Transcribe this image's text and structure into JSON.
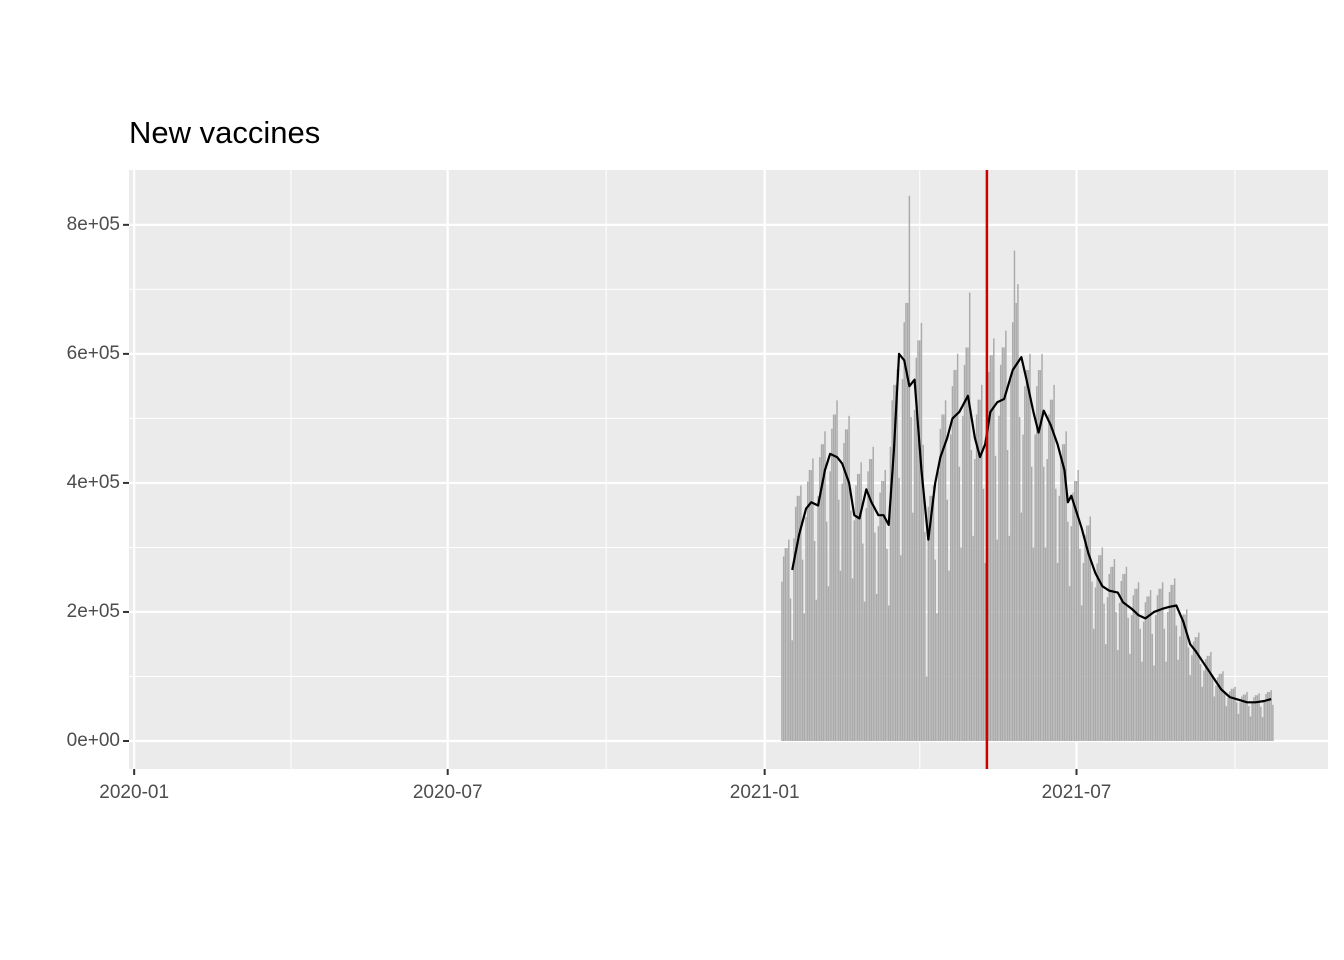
{
  "chart_data": {
    "type": "bar",
    "title": "New vaccines",
    "xlim": [
      "2019-12-29",
      "2021-11-24"
    ],
    "xticks": [
      "2020-01",
      "2020-07",
      "2021-01",
      "2021-07"
    ],
    "xminorticks": [
      "2020-04",
      "2020-10",
      "2021-04",
      "2021-10"
    ],
    "ylim": [
      -43400,
      885000
    ],
    "yticks": [
      {
        "value": 0,
        "label": "0e+00"
      },
      {
        "value": 200000,
        "label": "2e+05"
      },
      {
        "value": 400000,
        "label": "4e+05"
      },
      {
        "value": 600000,
        "label": "6e+05"
      },
      {
        "value": 800000,
        "label": "8e+05"
      }
    ],
    "yminorticks": [
      100000,
      300000,
      500000,
      700000
    ],
    "grid": true,
    "color": "#aaaaaa",
    "x": [
      "2021-01-11",
      "2021-01-12",
      "2021-01-13",
      "2021-01-14",
      "2021-01-15",
      "2021-01-16",
      "2021-01-17",
      "2021-01-18",
      "2021-01-19",
      "2021-01-20",
      "2021-01-21",
      "2021-01-22",
      "2021-01-23",
      "2021-01-24",
      "2021-01-25",
      "2021-01-26",
      "2021-01-27",
      "2021-01-28",
      "2021-01-29",
      "2021-01-30",
      "2021-01-31",
      "2021-02-01",
      "2021-02-02",
      "2021-02-03",
      "2021-02-04",
      "2021-02-05",
      "2021-02-06",
      "2021-02-07",
      "2021-02-08",
      "2021-02-09",
      "2021-02-10",
      "2021-02-11",
      "2021-02-12",
      "2021-02-13",
      "2021-02-14",
      "2021-02-15",
      "2021-02-16",
      "2021-02-17",
      "2021-02-18",
      "2021-02-19",
      "2021-02-20",
      "2021-02-21",
      "2021-02-22",
      "2021-02-23",
      "2021-02-24",
      "2021-02-25",
      "2021-02-26",
      "2021-02-27",
      "2021-02-28",
      "2021-03-01",
      "2021-03-02",
      "2021-03-03",
      "2021-03-04",
      "2021-03-05",
      "2021-03-06",
      "2021-03-07",
      "2021-03-08",
      "2021-03-09",
      "2021-03-10",
      "2021-03-11",
      "2021-03-12",
      "2021-03-13",
      "2021-03-14",
      "2021-03-15",
      "2021-03-16",
      "2021-03-17",
      "2021-03-18",
      "2021-03-19",
      "2021-03-20",
      "2021-03-21",
      "2021-03-22",
      "2021-03-23",
      "2021-03-24",
      "2021-03-25",
      "2021-03-26",
      "2021-03-27",
      "2021-03-28",
      "2021-03-29",
      "2021-03-30",
      "2021-03-31",
      "2021-04-01",
      "2021-04-02",
      "2021-04-03",
      "2021-04-04",
      "2021-04-05",
      "2021-04-06",
      "2021-04-07",
      "2021-04-08",
      "2021-04-09",
      "2021-04-10",
      "2021-04-11",
      "2021-04-12",
      "2021-04-13",
      "2021-04-14",
      "2021-04-15",
      "2021-04-16",
      "2021-04-17",
      "2021-04-18",
      "2021-04-19",
      "2021-04-20",
      "2021-04-21",
      "2021-04-22",
      "2021-04-23",
      "2021-04-24",
      "2021-04-25",
      "2021-04-26",
      "2021-04-27",
      "2021-04-28",
      "2021-04-29",
      "2021-04-30",
      "2021-05-01",
      "2021-05-02",
      "2021-05-03",
      "2021-05-04",
      "2021-05-05",
      "2021-05-06",
      "2021-05-07",
      "2021-05-08",
      "2021-05-09",
      "2021-05-10",
      "2021-05-11",
      "2021-05-12",
      "2021-05-13",
      "2021-05-14",
      "2021-05-15",
      "2021-05-16",
      "2021-05-17",
      "2021-05-18",
      "2021-05-19",
      "2021-05-20",
      "2021-05-21",
      "2021-05-22",
      "2021-05-23",
      "2021-05-24",
      "2021-05-25",
      "2021-05-26",
      "2021-05-27",
      "2021-05-28",
      "2021-05-29",
      "2021-05-30",
      "2021-05-31",
      "2021-06-01",
      "2021-06-02",
      "2021-06-03",
      "2021-06-04",
      "2021-06-05",
      "2021-06-06",
      "2021-06-07",
      "2021-06-08",
      "2021-06-09",
      "2021-06-10",
      "2021-06-11",
      "2021-06-12",
      "2021-06-13",
      "2021-06-14",
      "2021-06-15",
      "2021-06-16",
      "2021-06-17",
      "2021-06-18",
      "2021-06-19",
      "2021-06-20",
      "2021-06-21",
      "2021-06-22",
      "2021-06-23",
      "2021-06-24",
      "2021-06-25",
      "2021-06-26",
      "2021-06-27",
      "2021-06-28",
      "2021-06-29",
      "2021-06-30",
      "2021-07-01",
      "2021-07-02",
      "2021-07-03",
      "2021-07-04",
      "2021-07-05",
      "2021-07-06",
      "2021-07-07",
      "2021-07-08",
      "2021-07-09",
      "2021-07-10",
      "2021-07-11",
      "2021-07-12",
      "2021-07-13",
      "2021-07-14",
      "2021-07-15",
      "2021-07-16",
      "2021-07-17",
      "2021-07-18",
      "2021-07-19",
      "2021-07-20",
      "2021-07-21",
      "2021-07-22",
      "2021-07-23",
      "2021-07-24",
      "2021-07-25",
      "2021-07-26",
      "2021-07-27",
      "2021-07-28",
      "2021-07-29",
      "2021-07-30",
      "2021-07-31",
      "2021-08-01",
      "2021-08-02",
      "2021-08-03",
      "2021-08-04",
      "2021-08-05",
      "2021-08-06",
      "2021-08-07",
      "2021-08-08",
      "2021-08-09",
      "2021-08-10",
      "2021-08-11",
      "2021-08-12",
      "2021-08-13",
      "2021-08-14",
      "2021-08-15",
      "2021-08-16",
      "2021-08-17",
      "2021-08-18",
      "2021-08-19",
      "2021-08-20",
      "2021-08-21",
      "2021-08-22",
      "2021-08-23",
      "2021-08-24",
      "2021-08-25",
      "2021-08-26",
      "2021-08-27",
      "2021-08-28",
      "2021-08-29",
      "2021-08-30",
      "2021-08-31",
      "2021-09-01",
      "2021-09-02",
      "2021-09-03",
      "2021-09-04",
      "2021-09-05",
      "2021-09-06",
      "2021-09-07",
      "2021-09-08",
      "2021-09-09",
      "2021-09-10",
      "2021-09-11",
      "2021-09-12",
      "2021-09-13",
      "2021-09-14",
      "2021-09-15",
      "2021-09-16",
      "2021-09-17",
      "2021-09-18",
      "2021-09-19",
      "2021-09-20",
      "2021-09-21",
      "2021-09-22",
      "2021-09-23",
      "2021-09-24",
      "2021-09-25",
      "2021-09-26",
      "2021-09-27",
      "2021-09-28",
      "2021-09-29",
      "2021-09-30",
      "2021-10-01",
      "2021-10-02",
      "2021-10-03",
      "2021-10-04",
      "2021-10-05",
      "2021-10-06",
      "2021-10-07",
      "2021-10-08",
      "2021-10-09",
      "2021-10-10",
      "2021-10-11",
      "2021-10-12",
      "2021-10-13",
      "2021-10-14",
      "2021-10-15",
      "2021-10-16",
      "2021-10-17",
      "2021-10-18",
      "2021-10-19",
      "2021-10-20",
      "2021-10-21",
      "2021-10-22",
      "2021-10-23"
    ],
    "values": [
      247000,
      286000,
      299000,
      299000,
      312000,
      221000,
      156000,
      314000,
      363000,
      380000,
      380000,
      396000,
      281000,
      198000,
      347000,
      402000,
      420000,
      420000,
      438000,
      310000,
      219000,
      380000,
      440000,
      460000,
      460000,
      480000,
      340000,
      240000,
      418000,
      484000,
      506000,
      506000,
      528000,
      374000,
      264000,
      399000,
      462000,
      483000,
      483000,
      504000,
      357000,
      252000,
      342000,
      396000,
      414000,
      414000,
      432000,
      306000,
      216000,
      361000,
      418000,
      437000,
      437000,
      456000,
      323000,
      228000,
      333000,
      385000,
      403000,
      403000,
      420000,
      298000,
      210000,
      456000,
      528000,
      552000,
      552000,
      576000,
      408000,
      288000,
      561000,
      649000,
      679000,
      679000,
      845000,
      502000,
      354000,
      513000,
      594000,
      621000,
      621000,
      648000,
      459000,
      324000,
      100000,
      363000,
      380000,
      380000,
      396000,
      281000,
      198000,
      418000,
      484000,
      506000,
      506000,
      528000,
      374000,
      264000,
      475000,
      550000,
      575000,
      575000,
      600000,
      425000,
      300000,
      504000,
      583000,
      610000,
      610000,
      695000,
      451000,
      318000,
      437000,
      506000,
      529000,
      529000,
      552000,
      391000,
      276000,
      494000,
      572000,
      598000,
      598000,
      624000,
      442000,
      312000,
      504000,
      583000,
      610000,
      610000,
      636000,
      451000,
      318000,
      561000,
      649000,
      760000,
      679000,
      708000,
      502000,
      354000,
      475000,
      550000,
      575000,
      575000,
      600000,
      425000,
      300000,
      475000,
      550000,
      575000,
      575000,
      600000,
      425000,
      300000,
      437000,
      506000,
      529000,
      529000,
      552000,
      391000,
      276000,
      380000,
      440000,
      460000,
      460000,
      480000,
      340000,
      240000,
      333000,
      385000,
      403000,
      403000,
      420000,
      298000,
      210000,
      276000,
      319000,
      334000,
      334000,
      348000,
      247000,
      174000,
      238000,
      275000,
      288000,
      288000,
      300000,
      213000,
      150000,
      223000,
      259000,
      270000,
      270000,
      282000,
      200000,
      141000,
      214000,
      248000,
      259000,
      259000,
      270000,
      191000,
      135000,
      195000,
      226000,
      236000,
      236000,
      246000,
      174000,
      123000,
      185000,
      215000,
      224000,
      224000,
      234000,
      166000,
      117000,
      195000,
      226000,
      236000,
      236000,
      246000,
      174000,
      123000,
      200000,
      231000,
      242000,
      242000,
      252000,
      179000,
      126000,
      162000,
      187000,
      196000,
      196000,
      204000,
      145000,
      102000,
      133000,
      154000,
      161000,
      161000,
      168000,
      119000,
      84000,
      109000,
      127000,
      132000,
      132000,
      138000,
      98000,
      69000,
      86000,
      99000,
      104000,
      104000,
      108000,
      77000,
      54000,
      67000,
      77000,
      81000,
      81000,
      84000,
      60000,
      42000,
      60000,
      69000,
      72000,
      72000,
      76000,
      54000,
      38000,
      59000,
      68000,
      71000,
      71000,
      74000,
      53000,
      37000,
      63000,
      73000,
      76000,
      76000,
      79000,
      56000
    ],
    "smooth": {
      "color": "#000000",
      "x": [
        "2021-01-17",
        "2021-01-21",
        "2021-01-25",
        "2021-01-28",
        "2021-02-01",
        "2021-02-05",
        "2021-02-08",
        "2021-02-12",
        "2021-02-15",
        "2021-02-19",
        "2021-02-22",
        "2021-02-25",
        "2021-03-01",
        "2021-03-04",
        "2021-03-08",
        "2021-03-11",
        "2021-03-14",
        "2021-03-17",
        "2021-03-20",
        "2021-03-23",
        "2021-03-26",
        "2021-03-29",
        "2021-04-02",
        "2021-04-06",
        "2021-04-10",
        "2021-04-13",
        "2021-04-17",
        "2021-04-20",
        "2021-04-24",
        "2021-04-29",
        "2021-05-03",
        "2021-05-06",
        "2021-05-09",
        "2021-05-12",
        "2021-05-16",
        "2021-05-20",
        "2021-05-25",
        "2021-05-30",
        "2021-06-02",
        "2021-06-06",
        "2021-06-09",
        "2021-06-12",
        "2021-06-16",
        "2021-06-20",
        "2021-06-24",
        "2021-06-26",
        "2021-06-28",
        "2021-07-01",
        "2021-07-04",
        "2021-07-08",
        "2021-07-12",
        "2021-07-16",
        "2021-07-20",
        "2021-07-25",
        "2021-07-28",
        "2021-08-02",
        "2021-08-06",
        "2021-08-10",
        "2021-08-15",
        "2021-08-20",
        "2021-08-24",
        "2021-08-28",
        "2021-09-01",
        "2021-09-05",
        "2021-09-08",
        "2021-09-13",
        "2021-09-18",
        "2021-09-23",
        "2021-09-28",
        "2021-10-03",
        "2021-10-08",
        "2021-10-13",
        "2021-10-18",
        "2021-10-22"
      ],
      "values": [
        265000,
        320000,
        360000,
        370000,
        365000,
        420000,
        445000,
        440000,
        430000,
        400000,
        350000,
        345000,
        390000,
        370000,
        350000,
        350000,
        335000,
        450000,
        600000,
        590000,
        550000,
        560000,
        420000,
        312000,
        400000,
        440000,
        470000,
        500000,
        510000,
        535000,
        470000,
        440000,
        460000,
        510000,
        525000,
        530000,
        575000,
        595000,
        560000,
        510000,
        478000,
        512000,
        490000,
        460000,
        420000,
        370000,
        380000,
        355000,
        330000,
        290000,
        260000,
        240000,
        233000,
        230000,
        215000,
        205000,
        195000,
        190000,
        200000,
        205000,
        208000,
        210000,
        185000,
        150000,
        140000,
        120000,
        100000,
        80000,
        68000,
        64000,
        60000,
        60000,
        62000,
        65000
      ]
    },
    "vline": {
      "x": "2021-05-10",
      "color": "#cc0000"
    }
  }
}
